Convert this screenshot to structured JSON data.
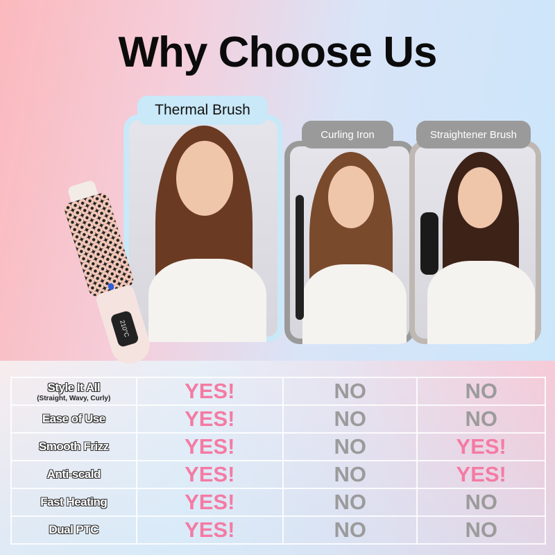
{
  "title": "Why Choose Us",
  "products": [
    {
      "label": "Thermal Brush",
      "highlight": true
    },
    {
      "label": "Curling Iron",
      "highlight": false
    },
    {
      "label": "Straightener Brush",
      "highlight": false
    }
  ],
  "brush_display": "210°C",
  "colors": {
    "yes": "#f47ba3",
    "no": "#9b9b9b",
    "highlight_frame": "#c9e8f8",
    "muted_frame": "#9a9a9a"
  },
  "table": {
    "rows": [
      {
        "feature": "Style It All",
        "sub": "(Straight, Wavy, Curly)",
        "values": [
          "YES!",
          "NO",
          "NO"
        ]
      },
      {
        "feature": "Ease of Use",
        "sub": "",
        "values": [
          "YES!",
          "NO",
          "NO"
        ]
      },
      {
        "feature": "Smooth Frizz",
        "sub": "",
        "values": [
          "YES!",
          "NO",
          "YES!"
        ]
      },
      {
        "feature": "Anti-scald",
        "sub": "",
        "values": [
          "YES!",
          "NO",
          "YES!"
        ]
      },
      {
        "feature": "Fast Heating",
        "sub": "",
        "values": [
          "YES!",
          "NO",
          "NO"
        ]
      },
      {
        "feature": "Dual PTC",
        "sub": "",
        "values": [
          "YES!",
          "NO",
          "NO"
        ]
      }
    ]
  }
}
